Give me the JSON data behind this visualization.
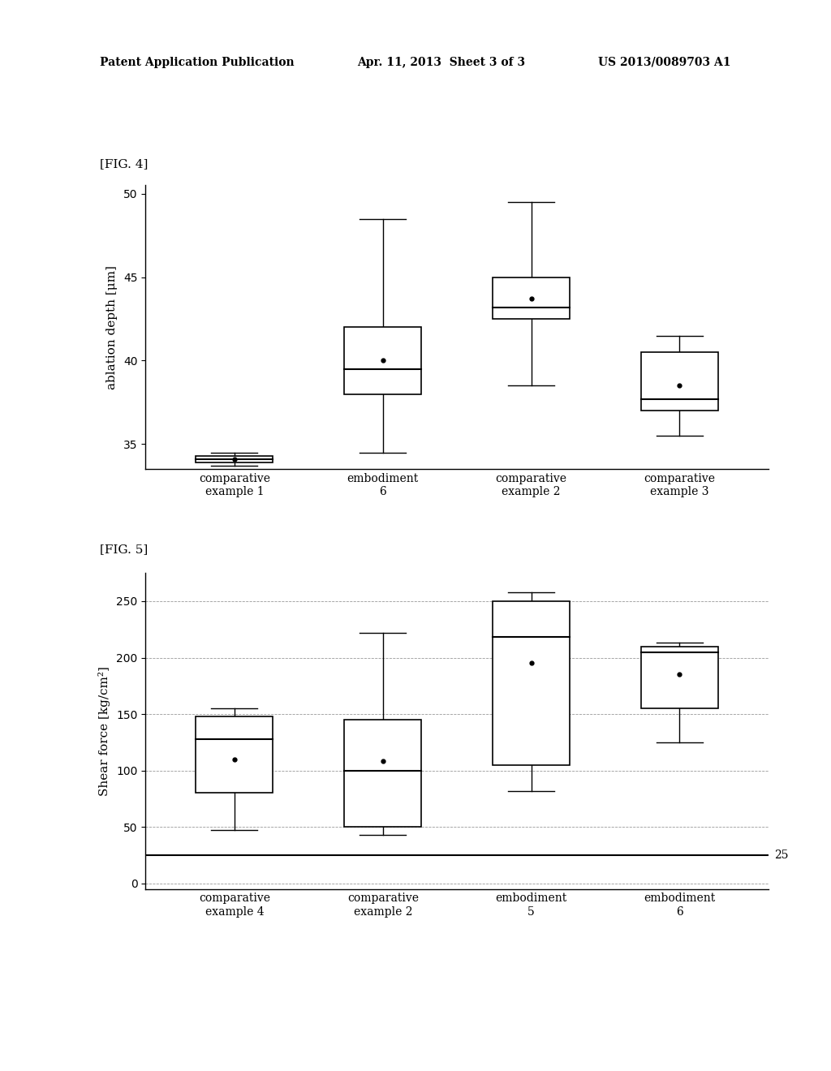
{
  "fig4": {
    "title": "[FIG. 4]",
    "ylabel": "ablation depth [μm]",
    "ylim": [
      33.5,
      50.5
    ],
    "yticks": [
      35,
      40,
      45,
      50
    ],
    "categories": [
      "comparative\nexample 1",
      "embodiment\n6",
      "comparative\nexample 2",
      "comparative\nexample 3"
    ],
    "boxes": [
      {
        "q1": 33.9,
        "median": 34.1,
        "q3": 34.3,
        "whisker_low": 33.7,
        "whisker_high": 34.5,
        "mean": 34.1
      },
      {
        "q1": 38.0,
        "median": 39.5,
        "q3": 42.0,
        "whisker_low": 34.5,
        "whisker_high": 48.5,
        "mean": 40.0
      },
      {
        "q1": 42.5,
        "median": 43.2,
        "q3": 45.0,
        "whisker_low": 38.5,
        "whisker_high": 49.5,
        "mean": 43.7
      },
      {
        "q1": 37.0,
        "median": 37.7,
        "q3": 40.5,
        "whisker_low": 35.5,
        "whisker_high": 41.5,
        "mean": 38.5
      }
    ]
  },
  "fig5": {
    "title": "[FIG. 5]",
    "ylabel": "Shear force [kg/cm²]",
    "ylim": [
      -5,
      275
    ],
    "yticks": [
      0,
      50,
      100,
      150,
      200,
      250
    ],
    "hline": 25,
    "hline_label": "25",
    "categories": [
      "comparative\nexample 4",
      "comparative\nexample 2",
      "embodiment\n5",
      "embodiment\n6"
    ],
    "boxes": [
      {
        "q1": 80.0,
        "median": 128.0,
        "q3": 148.0,
        "whisker_low": 47.0,
        "whisker_high": 155.0,
        "mean": 110.0
      },
      {
        "q1": 50.0,
        "median": 100.0,
        "q3": 145.0,
        "whisker_low": 43.0,
        "whisker_high": 222.0,
        "mean": 108.0
      },
      {
        "q1": 105.0,
        "median": 218.0,
        "q3": 250.0,
        "whisker_low": 82.0,
        "whisker_high": 258.0,
        "mean": 195.0
      },
      {
        "q1": 155.0,
        "median": 205.0,
        "q3": 210.0,
        "whisker_low": 125.0,
        "whisker_high": 213.0,
        "mean": 185.0
      }
    ]
  },
  "header_left": "Patent Application Publication",
  "header_mid": "Apr. 11, 2013  Sheet 3 of 3",
  "header_right": "US 2013/0089703 A1",
  "background_color": "#ffffff",
  "box_color": "#ffffff",
  "box_edge_color": "#000000",
  "whisker_color": "#000000",
  "median_color": "#000000",
  "mean_color": "#000000",
  "grid_color": "#999999",
  "font_size": 10,
  "tick_font_size": 10,
  "label_font_size": 11
}
